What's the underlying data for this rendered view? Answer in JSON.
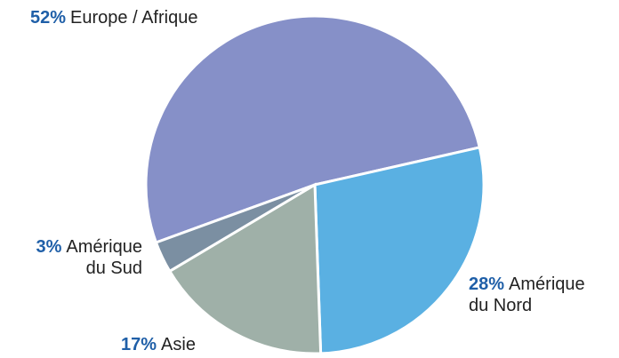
{
  "chart_data": {
    "type": "pie",
    "categories": [
      "Europe / Afrique",
      "Amérique du Nord",
      "Asie",
      "Amérique du Sud"
    ],
    "values": [
      52,
      28,
      17,
      3
    ],
    "value_labels": [
      "52%",
      "28%",
      "17%",
      "3%"
    ],
    "colors": [
      "#8690c8",
      "#5ab0e2",
      "#9fb0a8",
      "#7b8fa2"
    ]
  }
}
